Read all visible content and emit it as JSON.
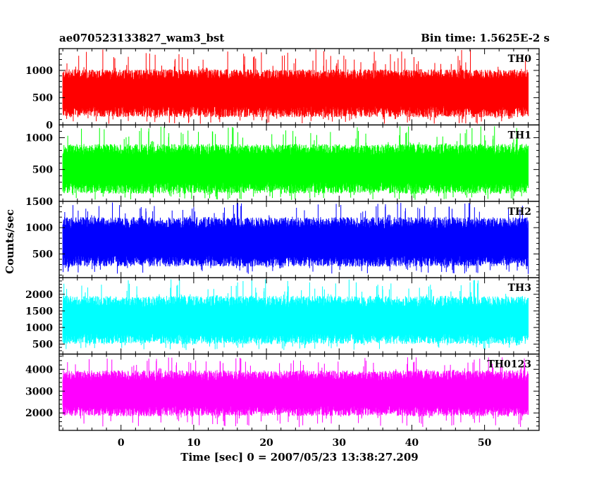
{
  "chart_data": {
    "type": "line",
    "title_left": "ae070523133827_wam3_bst",
    "title_right": "Bin time: 1.5625E-2 s",
    "xlabel": "Time [sec] 0 = 2007/05/23 13:38:27.209",
    "ylabel": "Counts/sec",
    "xlim": [
      -8.5,
      57.5
    ],
    "x_data_range": [
      -8,
      56
    ],
    "x_ticks": [
      0,
      10,
      20,
      30,
      40,
      50
    ],
    "x_tick_labels": [
      "0",
      "10",
      "20",
      "30",
      "40",
      "50"
    ],
    "x_minor_step": 2,
    "panels": [
      {
        "label": "TH0",
        "color": "#ff0000",
        "ylim": [
          0,
          1400
        ],
        "y_ticks": [
          0,
          500,
          1000
        ],
        "y_tick_labels": [
          "0",
          "500",
          "1000"
        ],
        "y_minor_step": 100,
        "mean": 600,
        "low_typical": 140,
        "high_typical": 1020,
        "min": 20,
        "max": 1400
      },
      {
        "label": "TH1",
        "color": "#00ff00",
        "ylim": [
          0,
          1200
        ],
        "y_ticks": [
          500,
          1000
        ],
        "y_tick_labels": [
          "500",
          "1000"
        ],
        "y_minor_step": 100,
        "mean": 520,
        "low_typical": 120,
        "high_typical": 900,
        "min": 20,
        "max": 1180
      },
      {
        "label": "TH2",
        "color": "#0000ff",
        "ylim": [
          50,
          1500
        ],
        "y_ticks": [
          500,
          1000,
          1500
        ],
        "y_tick_labels": [
          "500",
          "1000",
          "1500"
        ],
        "y_minor_step": 100,
        "mean": 720,
        "low_typical": 260,
        "high_typical": 1200,
        "min": 120,
        "max": 1480
      },
      {
        "label": "TH3",
        "color": "#00ffff",
        "ylim": [
          200,
          2500
        ],
        "y_ticks": [
          500,
          1000,
          1500,
          2000
        ],
        "y_tick_labels": [
          "500",
          "1000",
          "1500",
          "2000"
        ],
        "y_minor_step": 100,
        "mean": 1200,
        "low_typical": 500,
        "high_typical": 1950,
        "min": 320,
        "max": 2450
      },
      {
        "label": "TH0123",
        "color": "#ff00ff",
        "ylim": [
          1200,
          4700
        ],
        "y_ticks": [
          2000,
          3000,
          4000
        ],
        "y_tick_labels": [
          "2000",
          "3000",
          "4000"
        ],
        "y_minor_step": 200,
        "mean": 2900,
        "low_typical": 1850,
        "high_typical": 3950,
        "min": 1350,
        "max": 4550
      }
    ]
  }
}
